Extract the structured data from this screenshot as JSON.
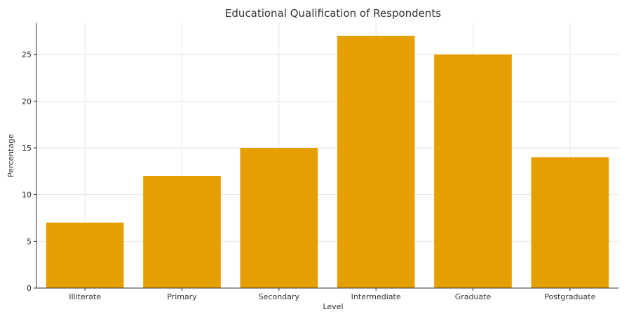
{
  "chart_data": {
    "type": "bar",
    "title": "Educational Qualification of Respondents",
    "xlabel": "Level",
    "ylabel": "Percentage",
    "categories": [
      "Illiterate",
      "Primary",
      "Secondary",
      "Intermediate",
      "Graduate",
      "Postgraduate"
    ],
    "values": [
      7,
      12,
      15,
      27,
      25,
      14
    ],
    "ylim": [
      0,
      28.35
    ],
    "yticks": [
      0,
      5,
      10,
      15,
      20,
      25
    ],
    "grid": true,
    "bar_color": "#E69F00",
    "grid_color": "#E6E6E6",
    "axis_color": "#333333",
    "text_color": "#333333"
  }
}
